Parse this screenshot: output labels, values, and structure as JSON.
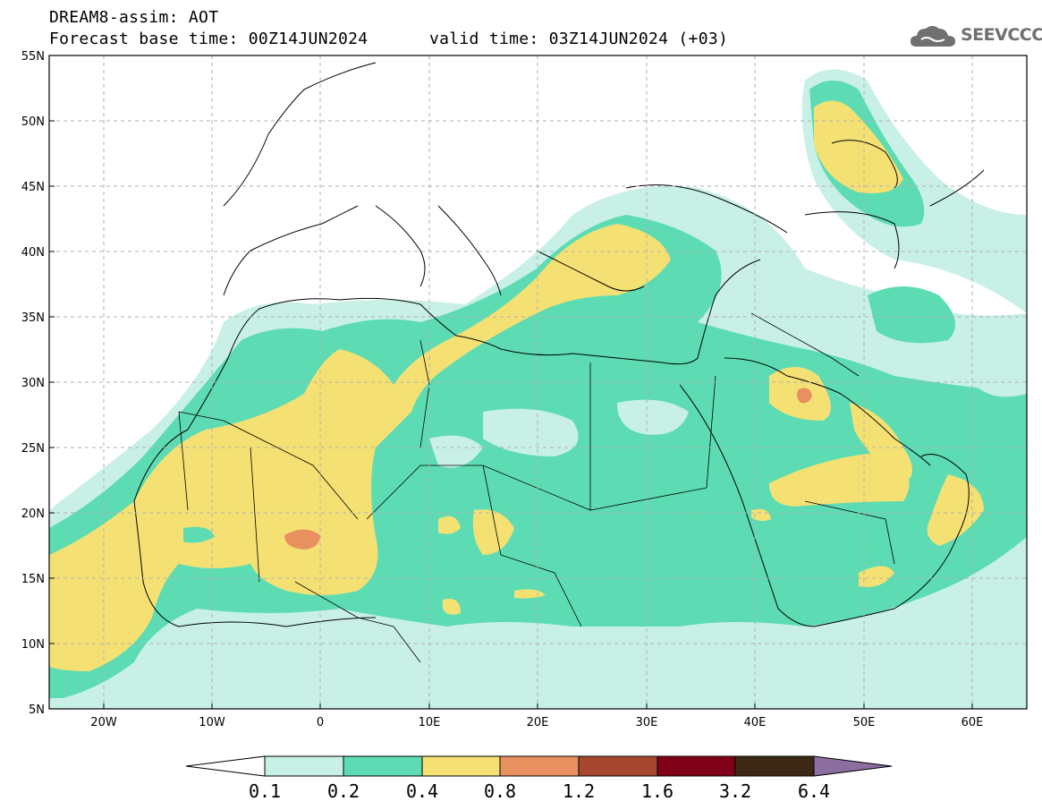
{
  "header": {
    "title_line1": "DREAM8-assim: AOT",
    "title_line2_left": "Forecast base time: 00Z14JUN2024",
    "title_line2_right": "valid time: 03Z14JUN2024 (+03)",
    "logo_text": "SEEVCCC"
  },
  "map": {
    "lat_labels": [
      "55N",
      "50N",
      "45N",
      "40N",
      "35N",
      "30N",
      "25N",
      "20N",
      "15N",
      "10N",
      "5N"
    ],
    "lon_labels": [
      "20W",
      "10W",
      "0",
      "10E",
      "20E",
      "30E",
      "40E",
      "50E",
      "60E"
    ],
    "extent": {
      "lon_min": -25,
      "lon_max": 65,
      "lat_min": 5,
      "lat_max": 55
    },
    "colors": {
      "lt_0.1": "#ffffff",
      "0.1-0.2": "#c8f0e6",
      "0.2-0.4": "#5ddcb4",
      "0.4-0.8": "#f5e173",
      "0.8-1.2": "#e8905f",
      "1.2-1.6": "#a64830",
      "1.6-3.2": "#800018",
      "3.2-6.4": "#3c2814",
      "gt_6.4": "#8c6ea0"
    }
  },
  "colorbar": {
    "labels": [
      "0.1",
      "0.2",
      "0.4",
      "0.8",
      "1.2",
      "1.6",
      "3.2",
      "6.4"
    ],
    "colors": [
      "#ffffff",
      "#c8f0e6",
      "#5ddcb4",
      "#f5e173",
      "#e8905f",
      "#a64830",
      "#800018",
      "#3c2814",
      "#8c6ea0"
    ]
  }
}
